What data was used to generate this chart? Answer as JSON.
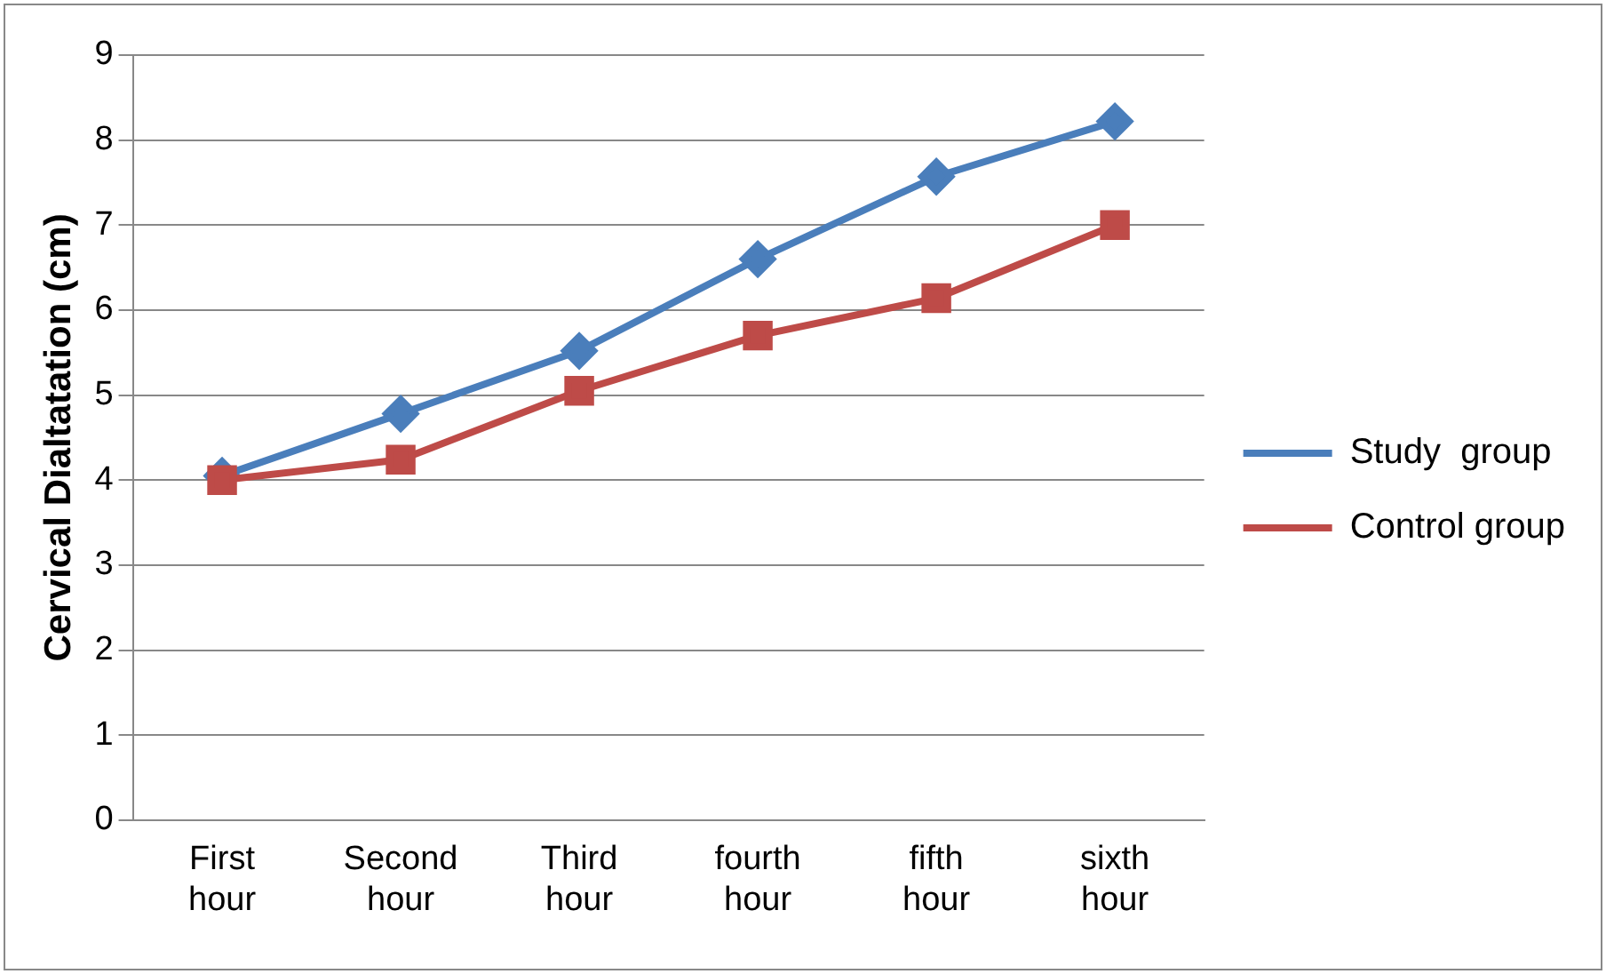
{
  "chart_data": {
    "type": "line",
    "ylabel": "Cervical Dialtatation (cm)",
    "categories": [
      "First hour",
      "Second hour",
      "Third hour",
      "fourth hour",
      "fifth hour",
      "sixth hour"
    ],
    "series": [
      {
        "name": "Study  group",
        "color": "#4a7ebb",
        "marker": "diamond",
        "values": [
          4.05,
          4.78,
          5.52,
          6.6,
          7.57,
          8.22
        ]
      },
      {
        "name": "Control group",
        "color": "#be4b48",
        "marker": "square",
        "values": [
          4.0,
          4.24,
          5.05,
          5.7,
          6.14,
          7.0
        ]
      }
    ],
    "ylim": [
      0,
      9
    ],
    "yticks": [
      0,
      1,
      2,
      3,
      4,
      5,
      6,
      7,
      8,
      9
    ],
    "grid": "y",
    "legend": "right",
    "line_style": "solid"
  }
}
